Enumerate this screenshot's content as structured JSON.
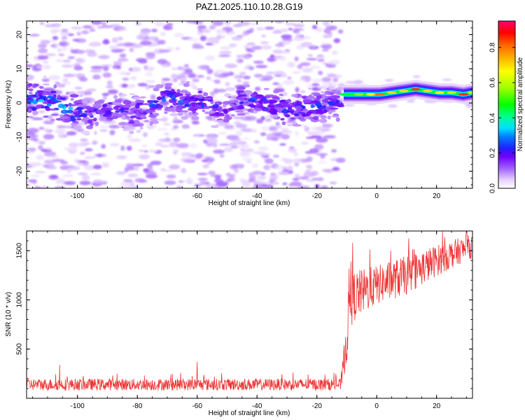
{
  "title": "PAZ1.2025.110.10.28.G19",
  "chart_data": [
    {
      "type": "heatmap",
      "xlabel": "Height of straight line (km)",
      "ylabel": "Frequency (Hz)",
      "xlim": [
        -117,
        32
      ],
      "ylim": [
        -25,
        24
      ],
      "xticks": [
        -100,
        -80,
        -60,
        -40,
        -20,
        0,
        20
      ],
      "yticks": [
        -20,
        -10,
        0,
        10,
        20
      ],
      "colorbar": {
        "label": "Normalized spectral amplitude",
        "range": [
          0,
          0.95
        ],
        "ticks": [
          0.0,
          0.2,
          0.4,
          0.6,
          0.8
        ]
      },
      "ridge": [
        {
          "x": -114,
          "f": 1.0,
          "a": 0.3
        },
        {
          "x": -108,
          "f": 0.5,
          "a": 0.28
        },
        {
          "x": -102,
          "f": -2.0,
          "a": 0.3
        },
        {
          "x": -97,
          "f": -3.5,
          "a": 0.22
        },
        {
          "x": -92,
          "f": -2.5,
          "a": 0.22
        },
        {
          "x": -86,
          "f": -2.0,
          "a": 0.2
        },
        {
          "x": -82,
          "f": -3.0,
          "a": 0.2
        },
        {
          "x": -76,
          "f": -1.0,
          "a": 0.24
        },
        {
          "x": -70,
          "f": 1.5,
          "a": 0.24
        },
        {
          "x": -64,
          "f": 0.5,
          "a": 0.26
        },
        {
          "x": -58,
          "f": 0.0,
          "a": 0.24
        },
        {
          "x": -51,
          "f": -2.5,
          "a": 0.2
        },
        {
          "x": -45,
          "f": 1.0,
          "a": 0.22
        },
        {
          "x": -40,
          "f": 1.0,
          "a": 0.24
        },
        {
          "x": -35,
          "f": -0.5,
          "a": 0.24
        },
        {
          "x": -30,
          "f": -2.5,
          "a": 0.22
        },
        {
          "x": -25,
          "f": -1.5,
          "a": 0.22
        },
        {
          "x": -20,
          "f": -0.5,
          "a": 0.24
        },
        {
          "x": -14,
          "f": -0.5,
          "a": 0.22
        }
      ],
      "tone": [
        {
          "x": -11,
          "f": 2.5,
          "a": 0.45
        },
        {
          "x": -6,
          "f": 2.5,
          "a": 0.55
        },
        {
          "x": -2,
          "f": 2.5,
          "a": 0.65
        },
        {
          "x": 1,
          "f": 2.5,
          "a": 0.8
        },
        {
          "x": 5,
          "f": 3.0,
          "a": 0.7
        },
        {
          "x": 9,
          "f": 3.5,
          "a": 0.7
        },
        {
          "x": 13,
          "f": 4.0,
          "a": 0.85
        },
        {
          "x": 17,
          "f": 3.5,
          "a": 0.7
        },
        {
          "x": 21,
          "f": 3.0,
          "a": 0.65
        },
        {
          "x": 25,
          "f": 3.0,
          "a": 0.6
        },
        {
          "x": 29,
          "f": 2.5,
          "a": 0.85
        },
        {
          "x": 32,
          "f": 3.0,
          "a": 0.6
        }
      ]
    },
    {
      "type": "line",
      "xlabel": "Height of straight line (km)",
      "ylabel": "SNR (10 * v/v)",
      "xlim": [
        -117,
        32
      ],
      "ylim": [
        0,
        1700
      ],
      "xticks": [
        -100,
        -80,
        -60,
        -40,
        -20,
        0,
        20
      ],
      "yticks": [
        500,
        1000,
        1500
      ],
      "line_color": "#ee3333",
      "envelope": [
        {
          "x": -117,
          "mean": 140,
          "spread": 60
        },
        {
          "x": -12,
          "mean": 140,
          "spread": 60
        },
        {
          "x": -10,
          "mean": 600,
          "spread": 250
        },
        {
          "x": -9,
          "mean": 1000,
          "spread": 300
        },
        {
          "x": -7,
          "mean": 1050,
          "spread": 250
        },
        {
          "x": 0,
          "mean": 1150,
          "spread": 200
        },
        {
          "x": 10,
          "mean": 1250,
          "spread": 200
        },
        {
          "x": 20,
          "mean": 1400,
          "spread": 160
        },
        {
          "x": 32,
          "mean": 1550,
          "spread": 120
        }
      ],
      "spikes": [
        {
          "x": -106,
          "y": 340
        },
        {
          "x": -60,
          "y": 370
        },
        {
          "x": -8,
          "y": 1580
        },
        {
          "x": 22,
          "y": 1700
        },
        {
          "x": 30,
          "y": 1700
        }
      ]
    }
  ]
}
